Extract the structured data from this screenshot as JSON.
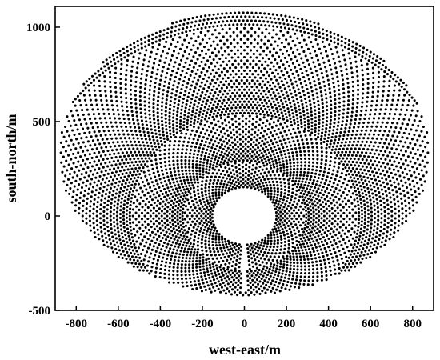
{
  "chart_data": {
    "type": "scatter",
    "title": "",
    "xlabel": "west-east/m",
    "ylabel": "south-north/m",
    "xlim": [
      -900,
      900
    ],
    "ylim": [
      -500,
      1110
    ],
    "xticks": [
      -800,
      -600,
      -400,
      -200,
      0,
      200,
      400,
      600,
      800
    ],
    "yticks": [
      -500,
      0,
      500,
      1000
    ],
    "xtick_labels": [
      "-800",
      "-600",
      "-400",
      "-200",
      "0",
      "200",
      "400",
      "600",
      "800"
    ],
    "ytick_labels": [
      "-500",
      "0",
      "500",
      "1000"
    ],
    "grid": false,
    "legend": "none",
    "marker_color": "#000000",
    "series": [
      {
        "layout": "radial-staggered heliostat field",
        "field_boundary": {
          "south_edge_y": -420,
          "north_edge_y": 1080,
          "west_edge_x": -880,
          "east_edge_x": 870,
          "ellipse_center": [
            0,
            330
          ],
          "semi_axis_x": 880,
          "semi_axis_y": 750
        },
        "inner_exclusion_radius": 145,
        "ring_spacing_start": 10,
        "ring_spacing_growth": 1.012,
        "south_access_gap": {
          "x": 0,
          "y_range": [
            -400,
            -150
          ],
          "half_width": 14
        }
      }
    ]
  }
}
